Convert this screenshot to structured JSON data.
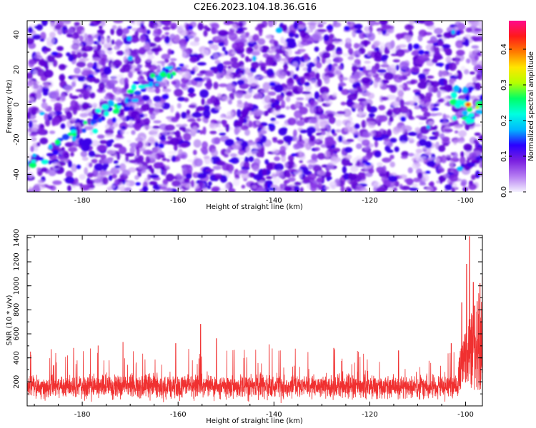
{
  "title": "C2E6.2023.104.18.36.G16",
  "chart_data": [
    {
      "type": "heatmap",
      "xlabel": "Height of straight line (km)",
      "ylabel": "Frequency (Hz)",
      "xlim": [
        -191.5,
        -96.5
      ],
      "ylim": [
        -50,
        48
      ],
      "x_ticks": [
        -180,
        -160,
        -140,
        -120,
        -100
      ],
      "y_ticks": [
        -40,
        -20,
        0,
        20,
        40
      ],
      "colorbar": {
        "label": "Normalized spectral amplitude",
        "range": [
          0.0,
          0.48
        ],
        "ticks": [
          0.0,
          0.1,
          0.2,
          0.3,
          0.4
        ],
        "colors": [
          "#f4f0ff",
          "#b57cf2",
          "#7a1fe0",
          "#2b00ff",
          "#00b7ff",
          "#00ffe0",
          "#00ff66",
          "#b5ff00",
          "#ffe600",
          "#ff7a00",
          "#ff1a1a",
          "#ff0a8c"
        ]
      },
      "features": [
        {
          "label": "descending track",
          "x": [
            -191,
            -183,
            -176,
            -170,
            -164,
            -160
          ],
          "y": [
            -34,
            -20,
            -8,
            6,
            16,
            22
          ]
        },
        {
          "label": "strong return",
          "x": [
            -99.5
          ],
          "y": [
            0
          ]
        }
      ]
    },
    {
      "type": "line",
      "xlabel": "Height of straight line (km)",
      "ylabel": "SNR (10 * v/v)",
      "xlim": [
        -191.5,
        -96.5
      ],
      "ylim": [
        0,
        1420
      ],
      "x_ticks": [
        -180,
        -160,
        -140,
        -120,
        -100
      ],
      "y_ticks": [
        200,
        400,
        600,
        800,
        1000,
        1200,
        1400
      ],
      "series": [
        {
          "color": "#f03030",
          "baseline_mean": 160,
          "baseline_spread": [
            20,
            480
          ],
          "peaks": [
            {
              "x": -190.8,
              "y": 450
            },
            {
              "x": -186.5,
              "y": 470
            },
            {
              "x": -181.8,
              "y": 480
            },
            {
              "x": -176.7,
              "y": 500
            },
            {
              "x": -171.5,
              "y": 530
            },
            {
              "x": -160.5,
              "y": 520
            },
            {
              "x": -155.3,
              "y": 680
            },
            {
              "x": -152.0,
              "y": 560
            },
            {
              "x": -141.0,
              "y": 510
            },
            {
              "x": -127.5,
              "y": 480
            },
            {
              "x": -114.0,
              "y": 460
            },
            {
              "x": -103.0,
              "y": 520
            },
            {
              "x": -100.8,
              "y": 860
            },
            {
              "x": -99.8,
              "y": 1180
            },
            {
              "x": -99.2,
              "y": 1410
            },
            {
              "x": -98.4,
              "y": 1030
            },
            {
              "x": -97.6,
              "y": 870
            },
            {
              "x": -97.0,
              "y": 1020
            }
          ]
        }
      ]
    }
  ]
}
